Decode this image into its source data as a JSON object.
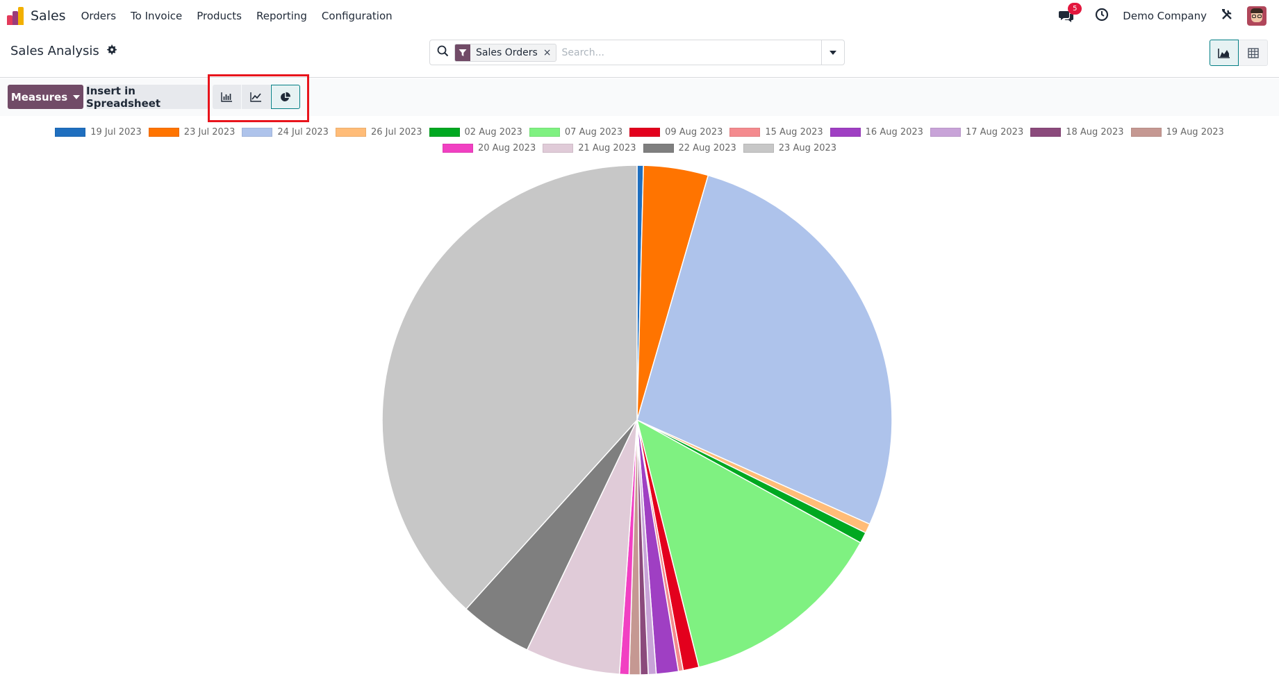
{
  "navbar": {
    "app_name": "Sales",
    "menu": [
      "Orders",
      "To Invoice",
      "Products",
      "Reporting",
      "Configuration"
    ],
    "chat_badge": "5",
    "company": "Demo Company"
  },
  "control": {
    "title": "Sales Analysis",
    "facet_label": "Sales Orders",
    "facet_remove": "×",
    "search_placeholder": "Search..."
  },
  "toolbar": {
    "measures_label": "Measures",
    "insert_label": "Insert in Spreadsheet"
  },
  "colors": {
    "brand": "#714b67",
    "accent": "#017e84",
    "highlight": "#e8141c"
  },
  "chart_data": {
    "type": "pie",
    "legend_position": "top",
    "categories": [
      "19 Jul 2023",
      "23 Jul 2023",
      "24 Jul 2023",
      "26 Jul 2023",
      "02 Aug 2023",
      "07 Aug 2023",
      "09 Aug 2023",
      "15 Aug 2023",
      "16 Aug 2023",
      "17 Aug 2023",
      "18 Aug 2023",
      "19 Aug 2023",
      "20 Aug 2023",
      "21 Aug 2023",
      "22 Aug 2023",
      "23 Aug 2023"
    ],
    "values": [
      0.4,
      4.1,
      27.2,
      0.6,
      0.7,
      13.1,
      1.0,
      0.3,
      1.4,
      0.5,
      0.5,
      0.7,
      0.6,
      6.0,
      4.6,
      38.3
    ],
    "colors": [
      "#1f6fbf",
      "#ff7400",
      "#aec3eb",
      "#ffbc78",
      "#00a821",
      "#7ff181",
      "#e3001d",
      "#f48a8e",
      "#9f3fc3",
      "#c8a3d8",
      "#8b4a7c",
      "#c59892",
      "#f140c2",
      "#e0cbd8",
      "#7f7f7f",
      "#c7c7c7"
    ]
  }
}
